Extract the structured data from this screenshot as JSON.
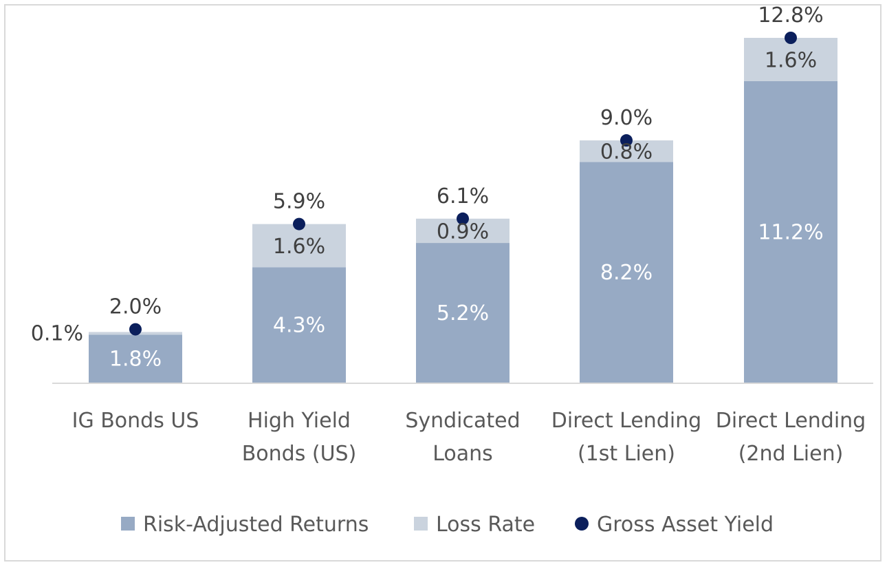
{
  "chart_data": {
    "type": "bar",
    "stacked": true,
    "categories": [
      [
        "IG Bonds US"
      ],
      [
        "High Yield",
        "Bonds (US)"
      ],
      [
        "Syndicated",
        "Loans"
      ],
      [
        "Direct Lending",
        "(1st Lien)"
      ],
      [
        "Direct Lending",
        "(2nd Lien)"
      ]
    ],
    "series": [
      {
        "name": "Risk-Adjusted Returns",
        "type": "bar",
        "color": "#97aac4",
        "values": [
          1.8,
          4.3,
          5.2,
          8.2,
          11.2
        ],
        "labels": [
          "1.8%",
          "4.3%",
          "5.2%",
          "8.2%",
          "11.2%"
        ]
      },
      {
        "name": "Loss Rate",
        "type": "bar",
        "color": "#cad3de",
        "values": [
          0.1,
          1.6,
          0.9,
          0.8,
          1.6
        ],
        "labels": [
          "0.1%",
          "1.6%",
          "0.9%",
          "0.8%",
          "1.6%"
        ]
      },
      {
        "name": "Gross Asset Yield",
        "type": "dot",
        "color": "#0b1f5c",
        "values": [
          2.0,
          5.9,
          6.1,
          9.0,
          12.8
        ],
        "labels": [
          "2.0%",
          "5.9%",
          "6.1%",
          "9.0%",
          "12.8%"
        ]
      }
    ],
    "title": "",
    "xlabel": "",
    "ylabel": "",
    "ylim": [
      0,
      12.8
    ],
    "grid": false,
    "legend_position": "bottom"
  }
}
